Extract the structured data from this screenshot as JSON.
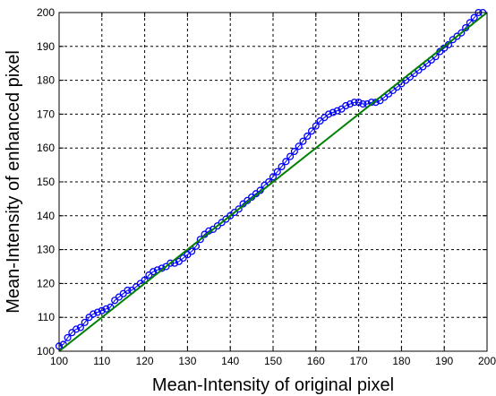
{
  "chart_data": {
    "type": "line",
    "xlabel": "Mean-Intensity of original pixel",
    "ylabel": "Mean-Intensity of enhanced pixel",
    "xlim": [
      100,
      200
    ],
    "ylim": [
      100,
      200
    ],
    "xticks": [
      100,
      110,
      120,
      130,
      140,
      150,
      160,
      170,
      180,
      190,
      200
    ],
    "yticks": [
      100,
      110,
      120,
      130,
      140,
      150,
      160,
      170,
      180,
      190,
      200
    ],
    "grid": true,
    "grid_style": "dashed",
    "series": [
      {
        "marker": "circle",
        "color": "#0000ff",
        "x": [
          100,
          101,
          102,
          103,
          104,
          105,
          106,
          107,
          108,
          109,
          110,
          111,
          112,
          113,
          114,
          115,
          116,
          117,
          118,
          119,
          120,
          121,
          122,
          123,
          124,
          125,
          126,
          127,
          128,
          129,
          130,
          131,
          132,
          133,
          134,
          135,
          136,
          137,
          138,
          139,
          140,
          141,
          142,
          143,
          144,
          145,
          146,
          147,
          148,
          149,
          150,
          151,
          152,
          153,
          154,
          155,
          156,
          157,
          158,
          159,
          160,
          161,
          162,
          163,
          164,
          165,
          166,
          167,
          168,
          169,
          170,
          171,
          172,
          173,
          174,
          175,
          176,
          177,
          178,
          179,
          180,
          181,
          182,
          183,
          184,
          185,
          186,
          187,
          188,
          189,
          190,
          191,
          192,
          193,
          194,
          195,
          196,
          197,
          198,
          199
        ],
        "y": [
          101.5,
          102,
          104,
          105.5,
          106.5,
          107,
          108.5,
          110,
          111,
          111.5,
          112,
          112.5,
          113,
          115,
          116,
          117,
          118,
          118,
          119,
          120,
          121,
          122.5,
          123.5,
          124,
          124.5,
          125,
          126,
          126,
          126.5,
          127.5,
          128.5,
          129.5,
          131,
          133,
          134.5,
          135.5,
          136,
          137,
          138,
          139,
          140,
          141,
          142,
          143.5,
          144.5,
          145.5,
          146.5,
          147.5,
          149,
          150,
          151.5,
          153,
          154.5,
          156,
          157.5,
          159,
          160.5,
          162,
          163.5,
          165,
          166.5,
          168,
          169,
          170,
          170.5,
          171,
          171.5,
          172.5,
          173,
          173.5,
          173.5,
          173,
          173,
          173.5,
          173.5,
          174,
          175,
          176,
          177,
          178,
          179,
          180,
          181,
          182,
          183,
          184,
          185,
          186,
          187,
          188.5,
          189.5,
          190.5,
          192,
          193,
          194,
          195.5,
          197,
          198.5,
          200,
          200
        ]
      },
      {
        "marker": "none",
        "color": "#008000",
        "x": [
          100,
          200
        ],
        "y": [
          100,
          200
        ]
      }
    ]
  }
}
